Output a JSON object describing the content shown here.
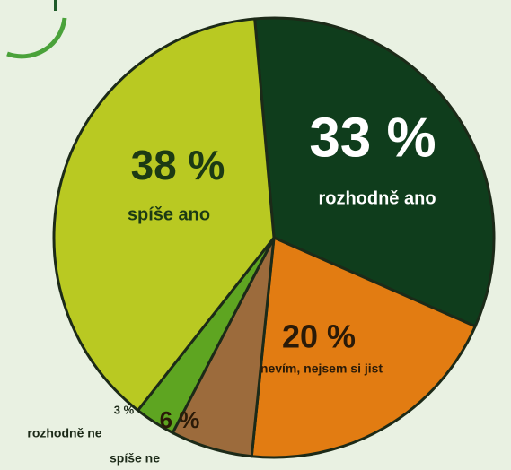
{
  "chart_data": {
    "type": "pie",
    "categories": [
      "rozhodně ano",
      "nevím, nejsem si jist",
      "spíše ne",
      "rozhodně ne",
      "spíše ano"
    ],
    "values": [
      33,
      20,
      6,
      3,
      38
    ],
    "value_labels": [
      "33 %",
      "20 %",
      "6 %",
      "3 %",
      "38 %"
    ],
    "colors": [
      "#0f3d1c",
      "#e27c12",
      "#9c6b3c",
      "#5ea521",
      "#b9c922"
    ]
  }
}
